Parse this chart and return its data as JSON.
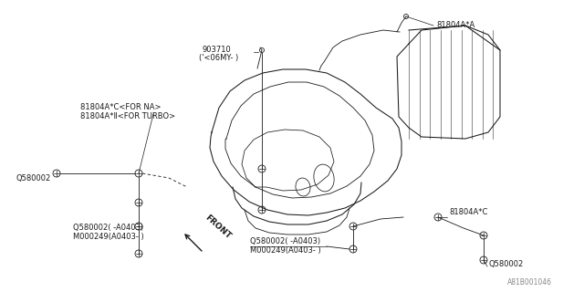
{
  "bg_color": "#ffffff",
  "line_color": "#1a1a1a",
  "fig_width": 6.4,
  "fig_height": 3.2,
  "dpi": 100,
  "part_id": "A81B001046",
  "labels": {
    "top_right_part": "81804A*A",
    "top_left_part1": "81804A*C<FOR NA>",
    "top_left_part2": "81804A*Ⅱ<FOR TURBO>",
    "left_bolt": "Q580002",
    "top_small": "903710",
    "top_small2": "('<06MY- )",
    "bottom_left1": "Q580002( -A0403)",
    "bottom_left2": "M000249(A0403- )",
    "bottom_mid1": "Q580002( -A0403)",
    "bottom_mid2": "M000249(A0403- )",
    "right_bolt": "Q580002",
    "right_part": "81804A*C",
    "front_label": "FRONT"
  }
}
